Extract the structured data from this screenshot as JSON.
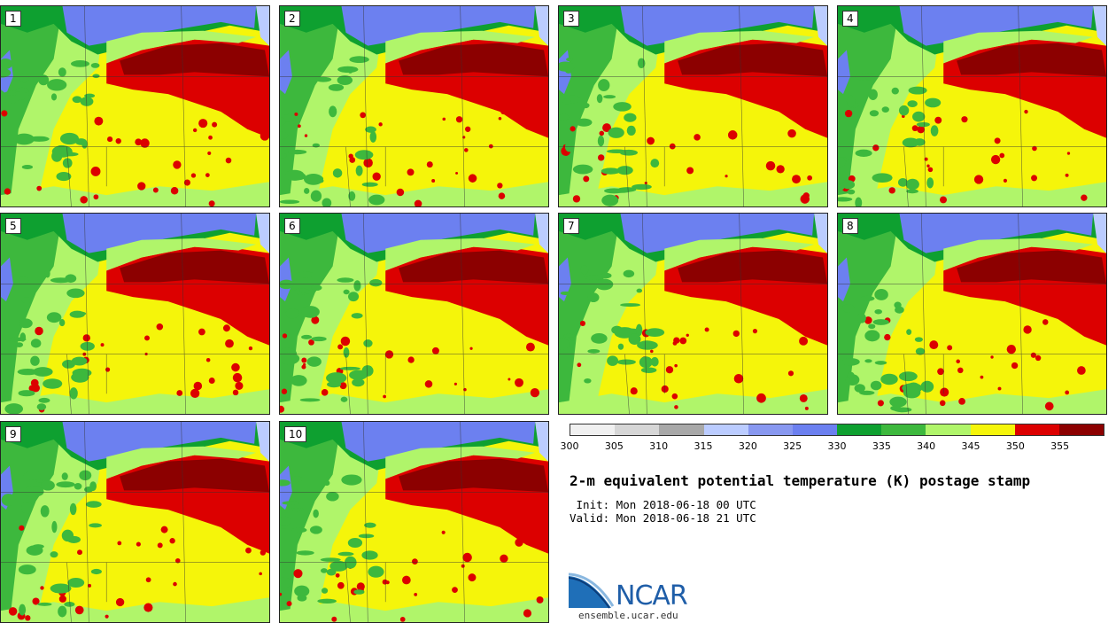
{
  "panels": [
    {
      "label": "1"
    },
    {
      "label": "2"
    },
    {
      "label": "3"
    },
    {
      "label": "4"
    },
    {
      "label": "5"
    },
    {
      "label": "6"
    },
    {
      "label": "7"
    },
    {
      "label": "8"
    },
    {
      "label": "9"
    },
    {
      "label": "10"
    }
  ],
  "colorbar": {
    "colors": [
      "#f0f0f0",
      "#d6d6d6",
      "#a8a8a8",
      "#bbccff",
      "#8898f0",
      "#6c80f0",
      "#0ea030",
      "#3db83d",
      "#b0f56a",
      "#f5f50a",
      "#dc0000",
      "#8c0000"
    ],
    "ticks": [
      "300",
      "305",
      "310",
      "315",
      "320",
      "325",
      "330",
      "335",
      "340",
      "345",
      "350",
      "355"
    ]
  },
  "title": "2-m equivalent potential temperature (K) postage stamp",
  "init_label": " Init: Mon 2018-06-18 00 UTC",
  "valid_label": "Valid: Mon 2018-06-18 21 UTC",
  "logo": {
    "text": "NCAR"
  },
  "site": "ensemble.ucar.edu"
}
